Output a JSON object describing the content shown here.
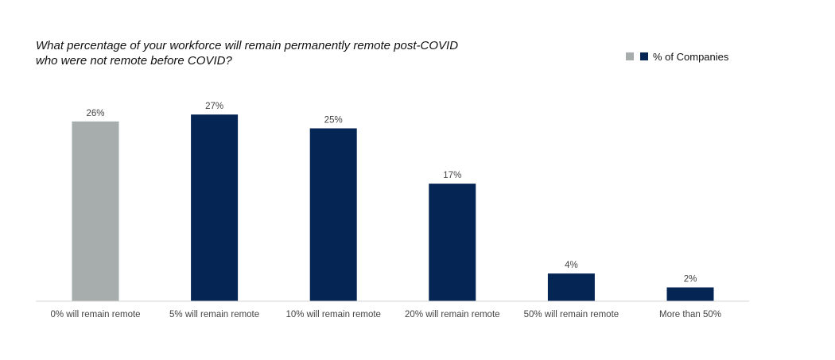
{
  "chart_data": {
    "type": "bar",
    "title": [
      "What percentage of your workforce will remain permanently remote post-COVID",
      "who were not remote before COVID?"
    ],
    "categories": [
      "0% will remain remote",
      "5% will remain remote",
      "10% will remain remote",
      "20% will remain remote",
      "50% will remain remote",
      "More than 50%"
    ],
    "series": [
      {
        "name": "% of Companies",
        "values": [
          26,
          27,
          25,
          17,
          4,
          2
        ],
        "value_labels": [
          "26%",
          "27%",
          "25%",
          "17%",
          "4%",
          "2%"
        ],
        "colors": [
          "#a6adac",
          "#052554",
          "#052554",
          "#052554",
          "#052554",
          "#052554"
        ]
      }
    ],
    "legend": {
      "position": "top-right",
      "swatch_colors": [
        "#a6adac",
        "#052554"
      ]
    },
    "ylim": [
      0,
      29
    ],
    "grid": false,
    "xlabel": "",
    "ylabel": ""
  }
}
